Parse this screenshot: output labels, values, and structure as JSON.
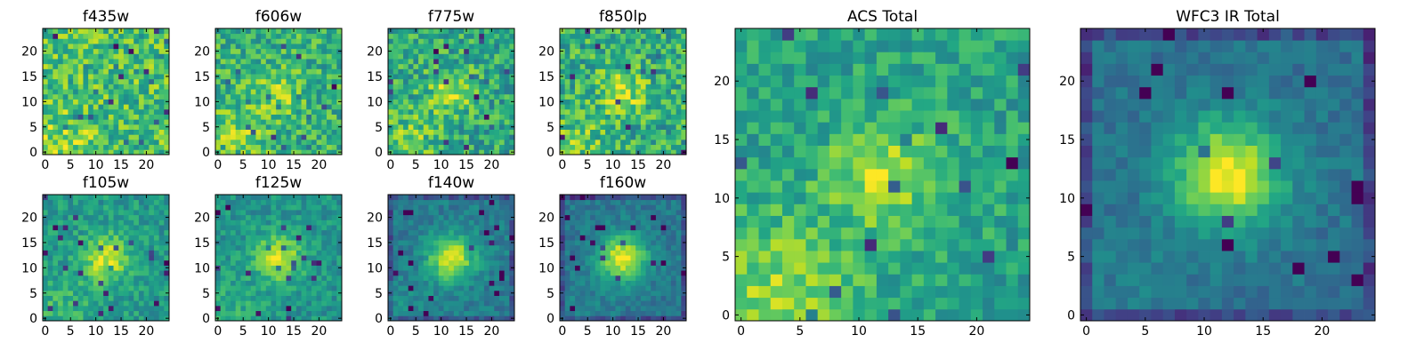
{
  "chart_data": [
    {
      "type": "heatmap",
      "title": "f435w",
      "xticks": [
        0,
        5,
        10,
        15,
        20
      ],
      "yticks": [
        0,
        5,
        10,
        15,
        20
      ],
      "xlim": [
        0,
        24
      ],
      "ylim": [
        0,
        24
      ],
      "grid": false,
      "colormap": "viridis",
      "shape": [
        25,
        25
      ],
      "source_center": null,
      "center_brightness": 0.0,
      "background_level": 0.7,
      "noise_level": 0.22,
      "lower_left_brightness": 0.15,
      "seed": 11
    },
    {
      "type": "heatmap",
      "title": "f606w",
      "xticks": [
        0,
        5,
        10,
        15,
        20
      ],
      "yticks": [
        0,
        5,
        10,
        15,
        20
      ],
      "xlim": [
        0,
        24
      ],
      "ylim": [
        0,
        24
      ],
      "grid": false,
      "colormap": "viridis",
      "shape": [
        25,
        25
      ],
      "source_center": [
        12,
        12
      ],
      "center_brightness": 0.2,
      "background_level": 0.64,
      "noise_level": 0.2,
      "lower_left_brightness": 0.22,
      "seed": 23
    },
    {
      "type": "heatmap",
      "title": "f775w",
      "xticks": [
        0,
        5,
        10,
        15,
        20
      ],
      "yticks": [
        0,
        5,
        10,
        15,
        20
      ],
      "xlim": [
        0,
        24
      ],
      "ylim": [
        0,
        24
      ],
      "grid": false,
      "colormap": "viridis",
      "shape": [
        25,
        25
      ],
      "source_center": [
        12,
        12
      ],
      "center_brightness": 0.26,
      "background_level": 0.6,
      "noise_level": 0.21,
      "lower_left_brightness": 0.18,
      "seed": 37
    },
    {
      "type": "heatmap",
      "title": "f850lp",
      "xticks": [
        0,
        5,
        10,
        15,
        20
      ],
      "yticks": [
        0,
        5,
        10,
        15,
        20
      ],
      "xlim": [
        0,
        24
      ],
      "ylim": [
        0,
        24
      ],
      "grid": false,
      "colormap": "viridis",
      "shape": [
        25,
        25
      ],
      "source_center": [
        12,
        12
      ],
      "center_brightness": 0.26,
      "background_level": 0.62,
      "noise_level": 0.22,
      "lower_left_brightness": 0.14,
      "seed": 41
    },
    {
      "type": "heatmap",
      "title": "f105w",
      "xticks": [
        0,
        5,
        10,
        15,
        20
      ],
      "yticks": [
        0,
        5,
        10,
        15,
        20
      ],
      "xlim": [
        0,
        24
      ],
      "ylim": [
        0,
        24
      ],
      "grid": false,
      "colormap": "viridis",
      "shape": [
        25,
        25
      ],
      "source_center": [
        12,
        12
      ],
      "center_brightness": 0.4,
      "background_level": 0.54,
      "noise_level": 0.13,
      "lower_left_brightness": 0.12,
      "seed": 53
    },
    {
      "type": "heatmap",
      "title": "f125w",
      "xticks": [
        0,
        5,
        10,
        15,
        20
      ],
      "yticks": [
        0,
        5,
        10,
        15,
        20
      ],
      "xlim": [
        0,
        24
      ],
      "ylim": [
        0,
        24
      ],
      "grid": false,
      "colormap": "viridis",
      "shape": [
        25,
        25
      ],
      "source_center": [
        12,
        12
      ],
      "center_brightness": 0.42,
      "background_level": 0.52,
      "noise_level": 0.12,
      "lower_left_brightness": 0.1,
      "seed": 67
    },
    {
      "type": "heatmap",
      "title": "f140w",
      "xticks": [
        0,
        5,
        10,
        15,
        20
      ],
      "yticks": [
        0,
        5,
        10,
        15,
        20
      ],
      "xlim": [
        0,
        24
      ],
      "ylim": [
        0,
        24
      ],
      "grid": false,
      "colormap": "viridis",
      "shape": [
        25,
        25
      ],
      "source_center": [
        12,
        12
      ],
      "center_brightness": 0.55,
      "background_level": 0.42,
      "noise_level": 0.1,
      "lower_left_brightness": 0.06,
      "seed": 71
    },
    {
      "type": "heatmap",
      "title": "f160w",
      "xticks": [
        0,
        5,
        10,
        15,
        20
      ],
      "yticks": [
        0,
        5,
        10,
        15,
        20
      ],
      "xlim": [
        0,
        24
      ],
      "ylim": [
        0,
        24
      ],
      "grid": false,
      "colormap": "viridis",
      "shape": [
        25,
        25
      ],
      "source_center": [
        12,
        12
      ],
      "center_brightness": 0.58,
      "background_level": 0.4,
      "noise_level": 0.09,
      "lower_left_brightness": 0.05,
      "seed": 83
    },
    {
      "type": "heatmap",
      "title": "ACS Total",
      "xticks": [
        0,
        5,
        10,
        15,
        20
      ],
      "yticks": [
        0,
        5,
        10,
        15,
        20
      ],
      "xlim": [
        0,
        24
      ],
      "ylim": [
        0,
        24
      ],
      "grid": false,
      "colormap": "viridis",
      "shape": [
        25,
        25
      ],
      "source_center": [
        12,
        12
      ],
      "center_brightness": 0.32,
      "background_level": 0.58,
      "noise_level": 0.15,
      "lower_left_brightness": 0.25,
      "seed": 97
    },
    {
      "type": "heatmap",
      "title": "WFC3 IR Total",
      "xticks": [
        0,
        5,
        10,
        15,
        20
      ],
      "yticks": [
        0,
        5,
        10,
        15,
        20
      ],
      "xlim": [
        0,
        24
      ],
      "ylim": [
        0,
        24
      ],
      "grid": false,
      "colormap": "viridis",
      "shape": [
        25,
        25
      ],
      "source_center": [
        12,
        12
      ],
      "center_brightness": 0.62,
      "background_level": 0.38,
      "noise_level": 0.08,
      "lower_left_brightness": 0.04,
      "seed": 101
    }
  ]
}
